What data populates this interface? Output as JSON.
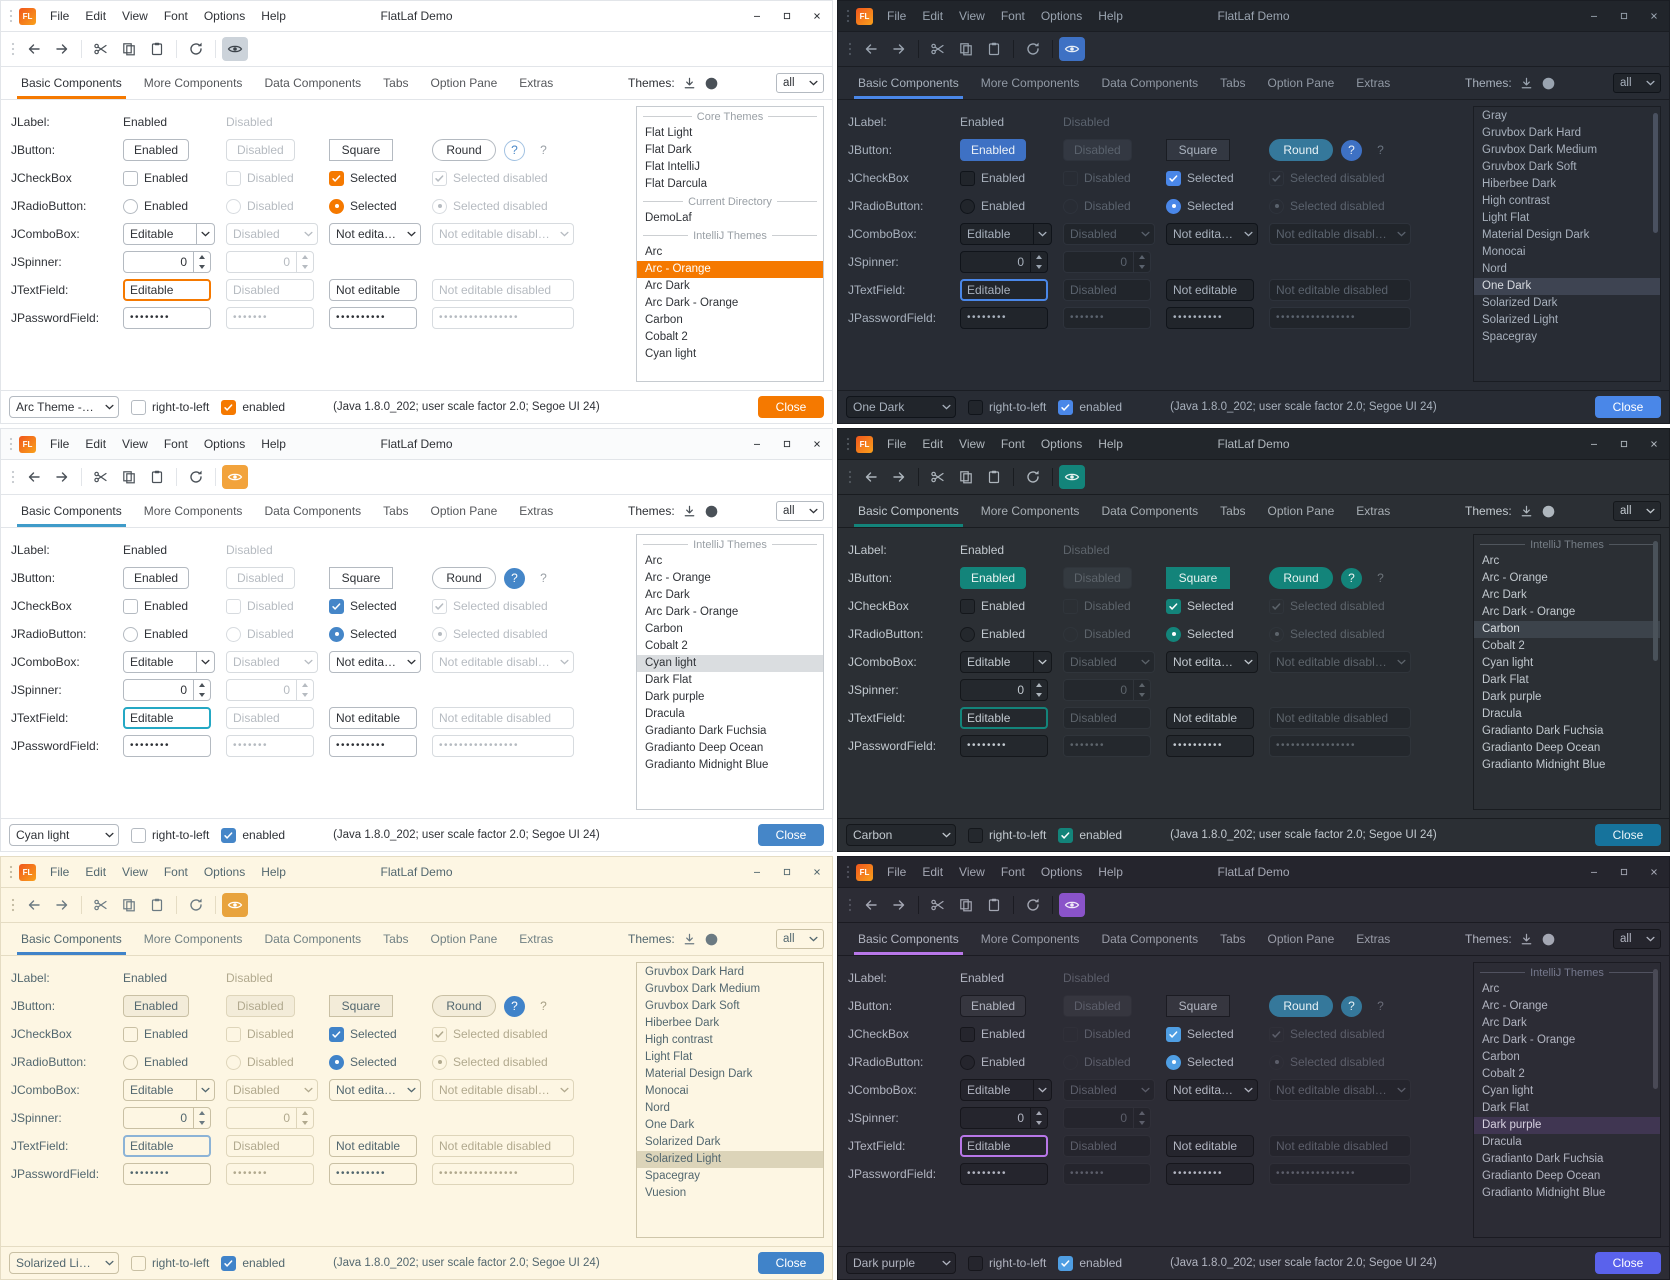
{
  "shared": {
    "logo": "FL",
    "window_title": "FlatLaf Demo",
    "menu": [
      "File",
      "Edit",
      "View",
      "Font",
      "Options",
      "Help"
    ],
    "tabs": [
      "Basic Components",
      "More Components",
      "Data Components",
      "Tabs",
      "Option Pane",
      "Extras"
    ],
    "themes_label": "Themes:",
    "themes_filter": "all",
    "icons": {
      "grip-icon": "vertical-dots",
      "back-icon": "arrow-left",
      "forward-icon": "arrow-right",
      "cut-icon": "scissors",
      "copy-icon": "two-rectangles",
      "paste-icon": "clipboard",
      "refresh-icon": "circular-arrow",
      "eye-icon": "eye",
      "download-icon": "arrow-down-tray",
      "github-icon": "github-circle",
      "chevron-down-icon": "chevron-down",
      "check-icon": "checkmark",
      "minimize-icon": "minus",
      "maximize-icon": "square-outline",
      "close-icon": "x-cross"
    },
    "rows": {
      "jlabel": {
        "label": "JLabel:",
        "enabled": "Enabled",
        "disabled": "Disabled"
      },
      "jbutton": {
        "label": "JButton:",
        "enabled": "Enabled",
        "disabled": "Disabled",
        "square": "Square",
        "round": "Round",
        "help": "?"
      },
      "jcheckbox": {
        "label": "JCheckBox",
        "enabled": "Enabled",
        "disabled": "Disabled",
        "selected": "Selected",
        "selected_disabled": "Selected disabled"
      },
      "jradiobutton": {
        "label": "JRadioButton:",
        "enabled": "Enabled",
        "disabled": "Disabled",
        "selected": "Selected",
        "selected_disabled": "Selected disabled"
      },
      "jcombobox": {
        "label": "JComboBox:",
        "editable": "Editable",
        "disabled": "Disabled",
        "not_editable": "Not editable",
        "not_editable_disabled": "Not editable disabled"
      },
      "jspinner": {
        "label": "JSpinner:",
        "value": "0"
      },
      "jtextfield": {
        "label": "JTextField:",
        "editable": "Editable",
        "disabled": "Disabled",
        "not_editable": "Not editable",
        "not_editable_disabled": "Not editable disabled"
      },
      "jpasswordfield": {
        "label": "JPasswordField:",
        "v1": "••••••••",
        "v2": "•••••••",
        "v3": "••••••••••",
        "v4": "••••••••••••••••"
      }
    },
    "statusbar": {
      "rtl": "right-to-left",
      "enabled": "enabled",
      "info": "(Java 1.8.0_202;  user scale factor 2.0;  Segoe UI 24)",
      "close": "Close"
    }
  },
  "panels": [
    {
      "name": "arc-orange-light",
      "selected_theme_combo": "Arc Theme - O...",
      "scrollbar": false,
      "list": [
        {
          "type": "header",
          "label": "Core Themes"
        },
        {
          "type": "item",
          "label": "Flat Light"
        },
        {
          "type": "item",
          "label": "Flat Dark"
        },
        {
          "type": "item",
          "label": "Flat IntelliJ"
        },
        {
          "type": "item",
          "label": "Flat Darcula"
        },
        {
          "type": "header",
          "label": "Current Directory"
        },
        {
          "type": "item",
          "label": "DemoLaf"
        },
        {
          "type": "header",
          "label": "IntelliJ Themes"
        },
        {
          "type": "item",
          "label": "Arc"
        },
        {
          "type": "item",
          "label": "Arc - Orange",
          "selected": true
        },
        {
          "type": "item",
          "label": "Arc Dark"
        },
        {
          "type": "item",
          "label": "Arc Dark - Orange"
        },
        {
          "type": "item",
          "label": "Carbon"
        },
        {
          "type": "item",
          "label": "Cobalt 2"
        },
        {
          "type": "item",
          "label": "Cyan light"
        }
      ],
      "colors": {
        "bg": "#ffffff",
        "fg": "#2f3237",
        "titlebarBg": "#ffffff",
        "titlebarFg": "#2f3237",
        "border": "#e2e5e9",
        "disabledFg": "#b6bbc1",
        "disabledBorder": "#d7dbdf",
        "accent": "#f57900",
        "inputBg": "#ffffff",
        "inputBorder": "#b4bac1",
        "btnBg": "#ffffff",
        "btnBorder": "#b4bac1",
        "btnFg": "#2f3237",
        "enabledBtnBg": "#ffffff",
        "enabledBtnFg": "#2f3237",
        "enabledBtnBorder": "#b4bac1",
        "squareBg": "#ffffff",
        "squareFg": "#2f3237",
        "squareBorder": "#b4bac1",
        "roundBg": "#ffffff",
        "roundFg": "#2f3237",
        "roundBorder": "#b4bac1",
        "helpBg": "#ffffff",
        "helpFg": "#4a88c7",
        "helpBorder": "#a2c2e2",
        "help2Fg": "#9aa0a6",
        "checkAccent": "#f57900",
        "listBg": "#ffffff",
        "listBorder": "#c6cbd0",
        "listSelBg": "#f57900",
        "listSelFg": "#ffffff",
        "listHeaderFg": "#9aa0a6",
        "closeBg": "#f57900",
        "closeFg": "#ffffff",
        "eyeBg": "#ccd3da",
        "eyeFg": "#3c434a",
        "iconFg": "#4a5158",
        "fieldFocus": "#f57900",
        "scrollThumb": "transparent"
      }
    },
    {
      "name": "one-dark",
      "selected_theme_combo": "One Dark",
      "scrollbar": true,
      "list": [
        {
          "type": "item",
          "label": "Gray"
        },
        {
          "type": "item",
          "label": "Gruvbox Dark Hard"
        },
        {
          "type": "item",
          "label": "Gruvbox Dark Medium"
        },
        {
          "type": "item",
          "label": "Gruvbox Dark Soft"
        },
        {
          "type": "item",
          "label": "Hiberbee Dark"
        },
        {
          "type": "item",
          "label": "High contrast"
        },
        {
          "type": "item",
          "label": "Light Flat"
        },
        {
          "type": "item",
          "label": "Material Design Dark"
        },
        {
          "type": "item",
          "label": "Monocai"
        },
        {
          "type": "item",
          "label": "Nord"
        },
        {
          "type": "item",
          "label": "One Dark",
          "selected": true
        },
        {
          "type": "item",
          "label": "Solarized Dark"
        },
        {
          "type": "item",
          "label": "Solarized Light"
        },
        {
          "type": "item",
          "label": "Spacegray"
        }
      ],
      "colors": {
        "bg": "#282c34",
        "fg": "#a8b1bd",
        "titlebarBg": "#21252b",
        "titlebarFg": "#9aa4b0",
        "border": "#1a1d23",
        "disabledFg": "#5a626d",
        "disabledBorder": "#2e333c",
        "accent": "#4a87e8",
        "inputBg": "#21252b",
        "inputBorder": "#10141a",
        "btnBg": "#333842",
        "btnBorder": "#1a1d23",
        "btnFg": "#a8b1bd",
        "enabledBtnBg": "#3e71c4",
        "enabledBtnFg": "#eaf0f6",
        "enabledBtnBorder": "#3e71c4",
        "squareBg": "#333842",
        "squareFg": "#a8b1bd",
        "squareBorder": "#1a1d23",
        "roundBg": "#35789b",
        "roundFg": "#e8f2f6",
        "roundBorder": "#35789b",
        "helpBg": "#3e71c4",
        "helpFg": "#eaf0f6",
        "helpBorder": "#3e71c4",
        "help2Fg": "#6b7480",
        "checkAccent": "#4a87e8",
        "listBg": "#282c34",
        "listBorder": "#1a1d23",
        "listSelBg": "#3e4452",
        "listSelFg": "#d8dbe0",
        "listHeaderFg": "#6b7480",
        "closeBg": "#4a87e8",
        "closeFg": "#ffffff",
        "eyeBg": "#3e71c4",
        "eyeFg": "#eaf0f6",
        "iconFg": "#9aa4b0",
        "fieldFocus": "#4a87e8",
        "scrollThumb": "#4a5160"
      }
    },
    {
      "name": "cyan-light",
      "selected_theme_combo": "Cyan light",
      "scrollbar": false,
      "list": [
        {
          "type": "header",
          "label": "IntelliJ Themes"
        },
        {
          "type": "item",
          "label": "Arc"
        },
        {
          "type": "item",
          "label": "Arc - Orange"
        },
        {
          "type": "item",
          "label": "Arc Dark"
        },
        {
          "type": "item",
          "label": "Arc Dark - Orange"
        },
        {
          "type": "item",
          "label": "Carbon"
        },
        {
          "type": "item",
          "label": "Cobalt 2"
        },
        {
          "type": "item",
          "label": "Cyan light",
          "selected": true
        },
        {
          "type": "item",
          "label": "Dark Flat"
        },
        {
          "type": "item",
          "label": "Dark purple"
        },
        {
          "type": "item",
          "label": "Dracula"
        },
        {
          "type": "item",
          "label": "Gradianto Dark Fuchsia"
        },
        {
          "type": "item",
          "label": "Gradianto Deep Ocean"
        },
        {
          "type": "item",
          "label": "Gradianto Midnight Blue"
        }
      ],
      "colors": {
        "bg": "#ffffff",
        "fg": "#2f3237",
        "titlebarBg": "#fafbfc",
        "titlebarFg": "#2f3237",
        "border": "#e2e5e9",
        "disabledFg": "#b6bbc1",
        "disabledBorder": "#d7dbdf",
        "accent": "#3f9bc9",
        "inputBg": "#ffffff",
        "inputBorder": "#b4bac1",
        "btnBg": "#ffffff",
        "btnBorder": "#b4bac1",
        "btnFg": "#2f3237",
        "enabledBtnBg": "#ffffff",
        "enabledBtnFg": "#2f3237",
        "enabledBtnBorder": "#b4bac1",
        "squareBg": "#ffffff",
        "squareFg": "#2f3237",
        "squareBorder": "#b4bac1",
        "roundBg": "#ffffff",
        "roundFg": "#2f3237",
        "roundBorder": "#b4bac1",
        "helpBg": "#4586c8",
        "helpFg": "#ffffff",
        "helpBorder": "#4586c8",
        "help2Fg": "#9aa0a6",
        "checkAccent": "#4586c8",
        "listBg": "#ffffff",
        "listBorder": "#c6cbd0",
        "listSelBg": "#dadde0",
        "listSelFg": "#2f3237",
        "listHeaderFg": "#9aa0a6",
        "closeBg": "#4586c8",
        "closeFg": "#ffffff",
        "eyeBg": "#f2a33c",
        "eyeFg": "#ffffff",
        "iconFg": "#4a5158",
        "fieldFocus": "#24a8c4",
        "scrollThumb": "transparent"
      }
    },
    {
      "name": "carbon",
      "selected_theme_combo": "Carbon",
      "scrollbar": true,
      "list": [
        {
          "type": "header",
          "label": "IntelliJ Themes"
        },
        {
          "type": "item",
          "label": "Arc"
        },
        {
          "type": "item",
          "label": "Arc - Orange"
        },
        {
          "type": "item",
          "label": "Arc Dark"
        },
        {
          "type": "item",
          "label": "Arc Dark - Orange"
        },
        {
          "type": "item",
          "label": "Carbon",
          "selected": true
        },
        {
          "type": "item",
          "label": "Cobalt 2"
        },
        {
          "type": "item",
          "label": "Cyan light"
        },
        {
          "type": "item",
          "label": "Dark Flat"
        },
        {
          "type": "item",
          "label": "Dark purple"
        },
        {
          "type": "item",
          "label": "Dracula"
        },
        {
          "type": "item",
          "label": "Gradianto Dark Fuchsia"
        },
        {
          "type": "item",
          "label": "Gradianto Deep Ocean"
        },
        {
          "type": "item",
          "label": "Gradianto Midnight Blue"
        }
      ],
      "colors": {
        "bg": "#2b2f34",
        "fg": "#c2c9cf",
        "titlebarBg": "#22262b",
        "titlebarFg": "#b0b7bd",
        "border": "#191c20",
        "disabledFg": "#5d646b",
        "disabledBorder": "#30353b",
        "accent": "#13847a",
        "inputBg": "#24282d",
        "inputBorder": "#14171b",
        "btnBg": "#343a40",
        "btnBorder": "#191c20",
        "btnFg": "#c2c9cf",
        "enabledBtnBg": "#13847a",
        "enabledBtnFg": "#e9f3f1",
        "enabledBtnBorder": "#13847a",
        "squareBg": "#13847a",
        "squareFg": "#e9f3f1",
        "squareBorder": "#13847a",
        "roundBg": "#13847a",
        "roundFg": "#e9f3f1",
        "roundBorder": "#13847a",
        "helpBg": "#13847a",
        "helpFg": "#e9f3f1",
        "helpBorder": "#13847a",
        "help2Fg": "#6c737a",
        "checkAccent": "#13847a",
        "listBg": "#2b2f34",
        "listBorder": "#191c20",
        "listSelBg": "#3c434b",
        "listSelFg": "#dde2e6",
        "listHeaderFg": "#757d85",
        "closeBg": "#16739c",
        "closeFg": "#eaf4f8",
        "eyeBg": "#13847a",
        "eyeFg": "#e9f3f1",
        "iconFg": "#aeb6bd",
        "fieldFocus": "#13847a",
        "scrollThumb": "#4a525a"
      }
    },
    {
      "name": "solarized-light",
      "selected_theme_combo": "Solarized Light",
      "scrollbar": false,
      "list": [
        {
          "type": "item",
          "label": "Gruvbox Dark Hard"
        },
        {
          "type": "item",
          "label": "Gruvbox Dark Medium"
        },
        {
          "type": "item",
          "label": "Gruvbox Dark Soft"
        },
        {
          "type": "item",
          "label": "Hiberbee Dark"
        },
        {
          "type": "item",
          "label": "High contrast"
        },
        {
          "type": "item",
          "label": "Light Flat"
        },
        {
          "type": "item",
          "label": "Material Design Dark"
        },
        {
          "type": "item",
          "label": "Monocai"
        },
        {
          "type": "item",
          "label": "Nord"
        },
        {
          "type": "item",
          "label": "One Dark"
        },
        {
          "type": "item",
          "label": "Solarized Dark"
        },
        {
          "type": "item",
          "label": "Solarized Light",
          "selected": true
        },
        {
          "type": "item",
          "label": "Spacegray"
        },
        {
          "type": "item",
          "label": "Vuesion"
        }
      ],
      "colors": {
        "bg": "#fdf6e3",
        "fg": "#52676f",
        "titlebarBg": "#fdf6e3",
        "titlebarFg": "#52676f",
        "border": "#e5dcc3",
        "disabledFg": "#b1a98e",
        "disabledBorder": "#ded5ba",
        "accent": "#4083c9",
        "inputBg": "#fdf6e3",
        "inputBorder": "#c9c0a4",
        "btnBg": "#f3ecd9",
        "btnBorder": "#c9c0a4",
        "btnFg": "#52676f",
        "enabledBtnBg": "#f3ecd9",
        "enabledBtnFg": "#52676f",
        "enabledBtnBorder": "#c9c0a4",
        "squareBg": "#f3ecd9",
        "squareFg": "#52676f",
        "squareBorder": "#c9c0a4",
        "roundBg": "#f3ecd9",
        "roundFg": "#52676f",
        "roundBorder": "#c9c0a4",
        "helpBg": "#4083c9",
        "helpFg": "#ffffff",
        "helpBorder": "#4083c9",
        "help2Fg": "#a7a086",
        "checkAccent": "#4083c9",
        "listBg": "#fdf6e3",
        "listBorder": "#cfc6aa",
        "listSelBg": "#dcd4b9",
        "listSelFg": "#52676f",
        "listHeaderFg": "#a7a086",
        "closeBg": "#4083c9",
        "closeFg": "#ffffff",
        "eyeBg": "#e8a33d",
        "eyeFg": "#ffffff",
        "iconFg": "#6b7a82",
        "fieldFocus": "#8cb3d6",
        "scrollThumb": "transparent"
      }
    },
    {
      "name": "dark-purple",
      "selected_theme_combo": "Dark purple",
      "scrollbar": true,
      "list": [
        {
          "type": "header",
          "label": "IntelliJ Themes"
        },
        {
          "type": "item",
          "label": "Arc"
        },
        {
          "type": "item",
          "label": "Arc - Orange"
        },
        {
          "type": "item",
          "label": "Arc Dark"
        },
        {
          "type": "item",
          "label": "Arc Dark - Orange"
        },
        {
          "type": "item",
          "label": "Carbon"
        },
        {
          "type": "item",
          "label": "Cobalt 2"
        },
        {
          "type": "item",
          "label": "Cyan light"
        },
        {
          "type": "item",
          "label": "Dark Flat"
        },
        {
          "type": "item",
          "label": "Dark purple",
          "selected": true
        },
        {
          "type": "item",
          "label": "Dracula"
        },
        {
          "type": "item",
          "label": "Gradianto Dark Fuchsia"
        },
        {
          "type": "item",
          "label": "Gradianto Deep Ocean"
        },
        {
          "type": "item",
          "label": "Gradianto Midnight Blue"
        }
      ],
      "colors": {
        "bg": "#2c2c35",
        "fg": "#b2b5c1",
        "titlebarBg": "#25252d",
        "titlebarFg": "#a4a7b3",
        "border": "#1b1b22",
        "disabledFg": "#5c5e6a",
        "disabledBorder": "#303039",
        "accent": "#b877e8",
        "inputBg": "#25252d",
        "inputBorder": "#16161c",
        "btnBg": "#36363f",
        "btnBorder": "#1b1b22",
        "btnFg": "#b2b5c1",
        "enabledBtnBg": "#36363f",
        "enabledBtnFg": "#b2b5c1",
        "enabledBtnBorder": "#1b1b22",
        "squareBg": "#36363f",
        "squareFg": "#b2b5c1",
        "squareBorder": "#1b1b22",
        "roundBg": "#35789b",
        "roundFg": "#e8f2f6",
        "roundBorder": "#35789b",
        "helpBg": "#35789b",
        "helpFg": "#e8f2f6",
        "helpBorder": "#35789b",
        "help2Fg": "#6a6c78",
        "checkAccent": "#4f9ee3",
        "listBg": "#2c2c35",
        "listBorder": "#1b1b22",
        "listSelBg": "#403652",
        "listSelFg": "#d6d1e0",
        "listHeaderFg": "#75788c",
        "closeBg": "#5a62ec",
        "closeFg": "#ffffff",
        "eyeBg": "#8a53c9",
        "eyeFg": "#f0eaf8",
        "iconFg": "#a4a7b3",
        "fieldFocus": "#b877e8",
        "scrollThumb": "#4a4a56"
      }
    }
  ]
}
